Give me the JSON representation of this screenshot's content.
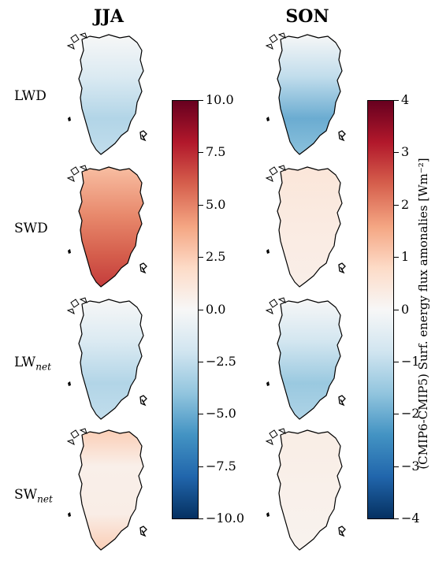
{
  "columns": [
    "JJA",
    "SON"
  ],
  "rows": [
    {
      "main": "LWD",
      "sub": ""
    },
    {
      "main": "SWD",
      "sub": ""
    },
    {
      "main": "LW",
      "sub": "net"
    },
    {
      "main": "SW",
      "sub": "net"
    }
  ],
  "chart_data": {
    "type": "heatmap",
    "panels": [
      {
        "row": "LWD",
        "season": "JJA",
        "pattern": "negative",
        "amplitude": -3.0
      },
      {
        "row": "SWD",
        "season": "JJA",
        "pattern": "positive",
        "amplitude": 7.0
      },
      {
        "row": "LWnet",
        "season": "JJA",
        "pattern": "negative",
        "amplitude": -3.0
      },
      {
        "row": "SWnet",
        "season": "JJA",
        "pattern": "mixed-positive",
        "amplitude": 2.5
      },
      {
        "row": "LWD",
        "season": "SON",
        "pattern": "negative",
        "amplitude": -2.0
      },
      {
        "row": "SWD",
        "season": "SON",
        "pattern": "positive-weak",
        "amplitude": 0.5
      },
      {
        "row": "LWnet",
        "season": "SON",
        "pattern": "negative",
        "amplitude": -1.5
      },
      {
        "row": "SWnet",
        "season": "SON",
        "pattern": "positive-weak",
        "amplitude": 0.3
      }
    ],
    "colorbars": [
      {
        "season": "JJA",
        "range": [
          -10.0,
          10.0
        ],
        "ticks": [
          "10.0",
          "7.5",
          "5.0",
          "2.5",
          "0.0",
          "−2.5",
          "−5.0",
          "−7.5",
          "−10.0"
        ]
      },
      {
        "season": "SON",
        "range": [
          -4,
          4
        ],
        "ticks": [
          "4",
          "3",
          "2",
          "1",
          "0",
          "−1",
          "−2",
          "−3",
          "−4"
        ]
      }
    ],
    "colorbar_label": "(CMIP6-CMIP5) Surf. energy flux amonalies [Wm⁻²]",
    "colormap": [
      "#67001f",
      "#b2182b",
      "#d6604d",
      "#f4a582",
      "#fddbc7",
      "#f7f7f7",
      "#d1e5f0",
      "#92c5de",
      "#4393c3",
      "#2166ac",
      "#053061"
    ]
  }
}
